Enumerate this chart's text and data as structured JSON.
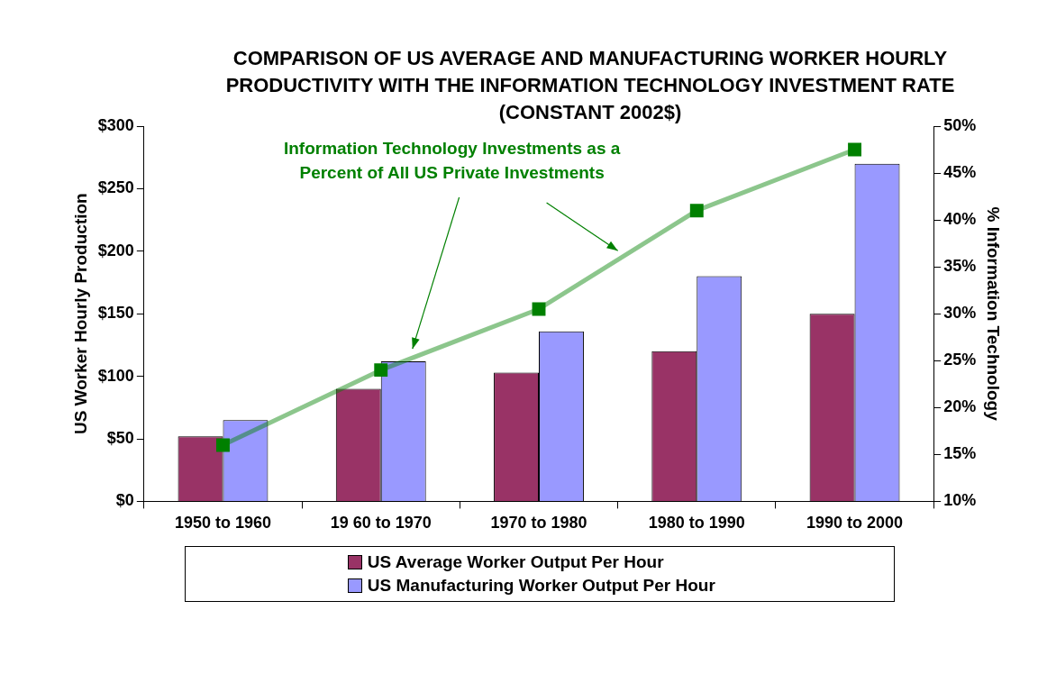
{
  "chart_data": {
    "type": "bar",
    "title": "COMPARISON OF US AVERAGE AND MANUFACTURING WORKER HOURLY PRODUCTIVITY WITH THE INFORMATION TECHNOLOGY INVESTMENT RATE (CONSTANT 2002$)",
    "categories": [
      "1950 to 1960",
      "19 60 to 1970",
      "1970 to 1980",
      "1980 to 1990",
      "1990 to 2000"
    ],
    "series": [
      {
        "name": "US Average Worker Output Per Hour",
        "color": "#993366",
        "values": [
          52,
          90,
          103,
          120,
          150
        ]
      },
      {
        "name": "US Manufacturing Worker Output Per Hour",
        "color": "#9999ff",
        "values": [
          65,
          112,
          136,
          180,
          270
        ]
      },
      {
        "type": "line",
        "axis": "y2",
        "color": "#008000",
        "values": [
          16,
          24,
          30.5,
          41,
          47.5
        ]
      }
    ],
    "ylabel": "US Worker Hourly Production",
    "y2label": "% Information Technology",
    "ylim": [
      0,
      300
    ],
    "yticks": [
      {
        "value": 0,
        "label": "$0"
      },
      {
        "value": 50,
        "label": "$50"
      },
      {
        "value": 100,
        "label": "$100"
      },
      {
        "value": 150,
        "label": "$150"
      },
      {
        "value": 200,
        "label": "$200"
      },
      {
        "value": 250,
        "label": "$250"
      },
      {
        "value": 300,
        "label": "$300"
      }
    ],
    "y2lim": [
      10,
      50
    ],
    "y2ticks": [
      {
        "value": 10,
        "label": "10%"
      },
      {
        "value": 15,
        "label": "15%"
      },
      {
        "value": 20,
        "label": "20%"
      },
      {
        "value": 25,
        "label": "25%"
      },
      {
        "value": 30,
        "label": "30%"
      },
      {
        "value": 35,
        "label": "35%"
      },
      {
        "value": 40,
        "label": "40%"
      },
      {
        "value": 45,
        "label": "45%"
      },
      {
        "value": 50,
        "label": "50%"
      }
    ],
    "annotations": [
      "Information Technology Investments as a Percent of All US Private Investments"
    ],
    "marker": "square",
    "legend": "bottom"
  }
}
